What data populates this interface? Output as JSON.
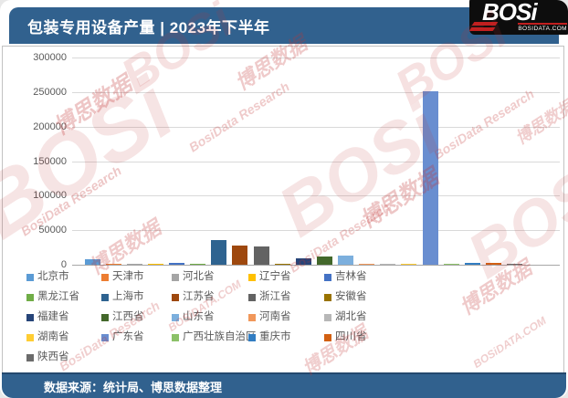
{
  "header": {
    "title": "包装专用设备产量 | 2023年下半年",
    "bar_color": "#31618E",
    "logo": {
      "name": "BOSi",
      "site": "BOSIDATA.COM"
    }
  },
  "footer": {
    "source_text": "数据来源：统计局、博思数据整理"
  },
  "watermark": {
    "color": "#C23535",
    "texts": [
      "BOSi",
      "博思数据",
      "BosiData Research",
      "BOSiDATA.COM"
    ]
  },
  "chart_data": {
    "type": "bar",
    "title": "包装专用设备产量 | 2023年下半年",
    "xlabel": "",
    "ylabel": "",
    "ylim": [
      0,
      300000
    ],
    "ytick_interval": 50000,
    "grid": true,
    "legend_position": "bottom",
    "categories": [
      "北京市",
      "天津市",
      "河北省",
      "辽宁省",
      "吉林省",
      "黑龙江省",
      "上海市",
      "江苏省",
      "浙江省",
      "安徽省",
      "福建省",
      "江西省",
      "山东省",
      "河南省",
      "湖北省",
      "湖南省",
      "广东省",
      "广西壮族自治区",
      "重庆市",
      "四川省",
      "陕西省"
    ],
    "values": [
      8500,
      2000,
      2000,
      1300,
      2600,
      900,
      35500,
      27500,
      25800,
      1600,
      9500,
      12500,
      13000,
      1800,
      1200,
      1600,
      251000,
      1900,
      2100,
      2600,
      1700
    ],
    "colors": [
      "#5B9BD5",
      "#ED7D31",
      "#A5A5A5",
      "#FFC000",
      "#4472C4",
      "#70AD47",
      "#2E6390",
      "#9E480E",
      "#636363",
      "#997300",
      "#264478",
      "#43682B",
      "#7CAFDD",
      "#F1975A",
      "#B7B7B7",
      "#FFCD33",
      "#698ED0",
      "#8CC168",
      "#327DC2",
      "#D26012",
      "#6B6B6B"
    ]
  }
}
